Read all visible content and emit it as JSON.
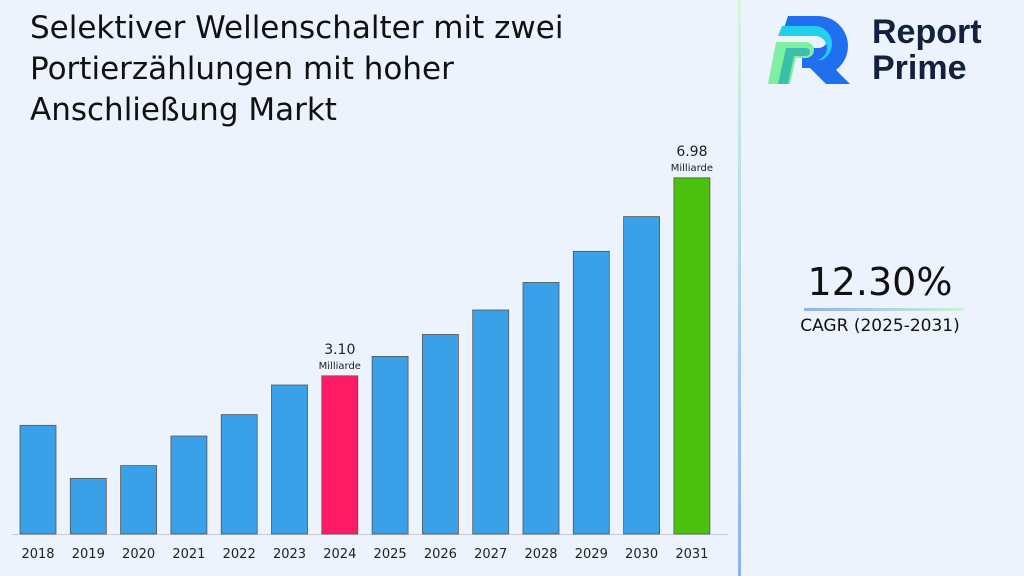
{
  "title": "Selektiver Wellenschalter mit zwei Portierzählungen mit hoher Anschließung Markt",
  "logo": {
    "line1": "Report",
    "line2": "Prime"
  },
  "cagr": {
    "value": "12.30%",
    "label": "CAGR (2025-2031)"
  },
  "chart_data": {
    "type": "bar",
    "categories": [
      "2018",
      "2019",
      "2020",
      "2021",
      "2022",
      "2023",
      "2024",
      "2025",
      "2026",
      "2027",
      "2028",
      "2029",
      "2030",
      "2031"
    ],
    "values": [
      2.13,
      1.09,
      1.34,
      1.92,
      2.34,
      2.92,
      3.1,
      3.48,
      3.91,
      4.39,
      4.93,
      5.54,
      6.22,
      6.98
    ],
    "unit": "Milliarde",
    "ylim": [
      0,
      7.6
    ],
    "grid": false,
    "colors": {
      "default": "#3aa0e8",
      "highlight_2024": "#ff1a66",
      "highlight_2031": "#4cc00e"
    },
    "data_labels": [
      {
        "category": "2024",
        "value": "3.10",
        "unit": "Milliarde"
      },
      {
        "category": "2031",
        "value": "6.98",
        "unit": "Milliarde"
      }
    ]
  }
}
